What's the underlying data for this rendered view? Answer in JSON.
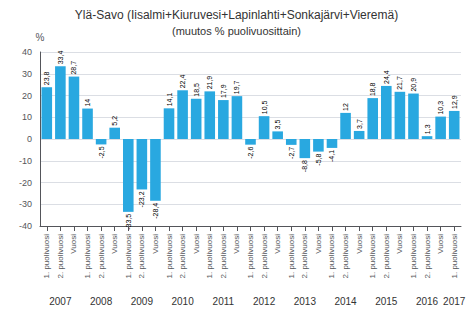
{
  "chart_data": {
    "type": "bar",
    "title": "Ylä-Savo (Iisalmi+Kiuruvesi+Lapinlahti+Sonkajärvi+Vieremä)",
    "subtitle": "(muutos % puolivuosittain)",
    "y_label": "%",
    "categories": [
      "1. puolivuosi",
      "2. puolivuosi",
      "Vuosi",
      "1. puolivuosi",
      "2. puolivuosi",
      "Vuosi",
      "1. puolivuosi",
      "2. puolivuosi",
      "Vuosi",
      "1. puolivuosi",
      "2. puolivuosi",
      "Vuosi",
      "1. puolivuosi",
      "2. puolivuosi",
      "Vuosi",
      "1. puolivuosi",
      "2. puolivuosi",
      "Vuosi",
      "1. puolivuosi",
      "2. puolivuosi",
      "Vuosi",
      "1. puolivuosi",
      "2. puolivuosi",
      "Vuosi",
      "1. puolivuosi",
      "2. puolivuosi",
      "Vuosi",
      "1. puolivuosi",
      "2. puolivuosi",
      "Vuosi",
      "1. puolivuosi"
    ],
    "x_group_labels": [
      null,
      "2007",
      null,
      null,
      "2008",
      null,
      null,
      "2009",
      null,
      null,
      "2010",
      null,
      null,
      "2011",
      null,
      null,
      "2012",
      null,
      null,
      "2013",
      null,
      null,
      "2014",
      null,
      null,
      "2015",
      null,
      null,
      "2016",
      null,
      "2017"
    ],
    "values": [
      23.8,
      33.4,
      28.7,
      14.0,
      -2.5,
      5.2,
      -33.5,
      -23.2,
      -28.4,
      14.1,
      22.4,
      18.5,
      21.9,
      17.9,
      19.7,
      -2.6,
      10.5,
      3.5,
      -2.7,
      -8.8,
      -5.8,
      -4.1,
      12.0,
      3.7,
      18.8,
      24.4,
      21.7,
      20.9,
      1.3,
      10.3,
      12.9
    ],
    "value_labels": [
      "23,8",
      "33,4",
      "28,7",
      "14",
      "-2,5",
      "5,2",
      "-33,5",
      "-23,2",
      "-28,4",
      "14,1",
      "22,4",
      "18,5",
      "21,9",
      "17,9",
      "19,7",
      "-2,6",
      "10,5",
      "3,5",
      "-2,7",
      "-8,8",
      "-5,8",
      "-4,1",
      "12",
      "3,7",
      "18,8",
      "24,4",
      "21,7",
      "20,9",
      "1,3",
      "10,3",
      "12,9"
    ],
    "color": "#29a8e0",
    "ylim": [
      -40,
      40
    ],
    "yticks": [
      -40,
      -30,
      -20,
      -10,
      0,
      10,
      20,
      30,
      40
    ],
    "grid": true,
    "data_labels": true
  }
}
